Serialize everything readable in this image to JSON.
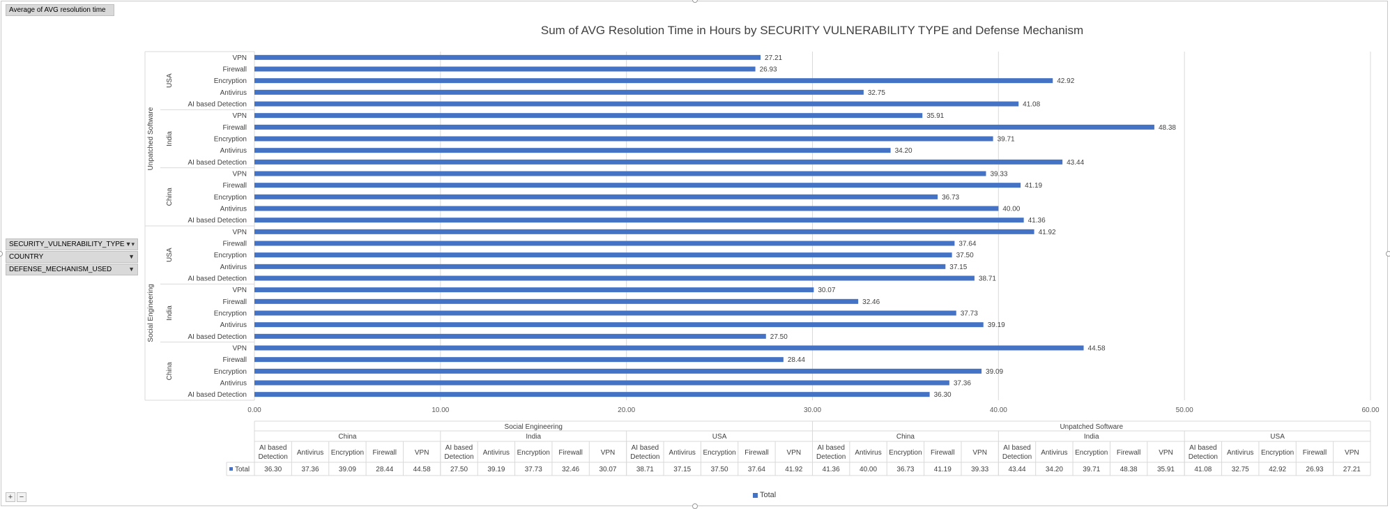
{
  "value_field_button": "Average of AVG resolution time",
  "filter_buttons": [
    "SECURITY_VULNERABILITY_TYPE",
    "COUNTRY",
    "DEFENSE_MECHANISM_USED"
  ],
  "expand_button": "+",
  "collapse_button": "−",
  "table_row_label": "Total",
  "colors": {
    "bar": "#4472c4",
    "grid": "#d9d9d9"
  },
  "chart_data": {
    "type": "bar",
    "orientation": "horizontal",
    "title": "Sum of AVG Resolution Time in Hours by SECURITY VULNERABILITY TYPE and Defense Mechanism",
    "xlim": [
      0,
      60
    ],
    "x_ticks": [
      "0.00",
      "10.00",
      "20.00",
      "30.00",
      "40.00",
      "50.00",
      "60.00"
    ],
    "grid": true,
    "legend": {
      "position": "bottom",
      "entries": [
        "Total"
      ]
    },
    "groups": [
      {
        "name": "Social Engineering",
        "countries": [
          {
            "name": "China",
            "categories": [
              "AI based Detection",
              "Antivirus",
              "Encryption",
              "Firewall",
              "VPN"
            ],
            "values": [
              36.3,
              37.36,
              39.09,
              28.44,
              44.58
            ]
          },
          {
            "name": "India",
            "categories": [
              "AI based Detection",
              "Antivirus",
              "Encryption",
              "Firewall",
              "VPN"
            ],
            "values": [
              27.5,
              39.19,
              37.73,
              32.46,
              30.07
            ]
          },
          {
            "name": "USA",
            "categories": [
              "AI based Detection",
              "Antivirus",
              "Encryption",
              "Firewall",
              "VPN"
            ],
            "values": [
              38.71,
              37.15,
              37.5,
              37.64,
              41.92
            ]
          }
        ]
      },
      {
        "name": "Unpatched Software",
        "countries": [
          {
            "name": "China",
            "categories": [
              "AI based Detection",
              "Antivirus",
              "Encryption",
              "Firewall",
              "VPN"
            ],
            "values": [
              41.36,
              40.0,
              36.73,
              41.19,
              39.33
            ]
          },
          {
            "name": "India",
            "categories": [
              "AI based Detection",
              "Antivirus",
              "Encryption",
              "Firewall",
              "VPN"
            ],
            "values": [
              43.44,
              34.2,
              39.71,
              48.38,
              35.91
            ]
          },
          {
            "name": "USA",
            "categories": [
              "AI based Detection",
              "Antivirus",
              "Encryption",
              "Firewall",
              "VPN"
            ],
            "values": [
              41.08,
              32.75,
              42.92,
              26.93,
              27.21
            ]
          }
        ]
      }
    ]
  }
}
